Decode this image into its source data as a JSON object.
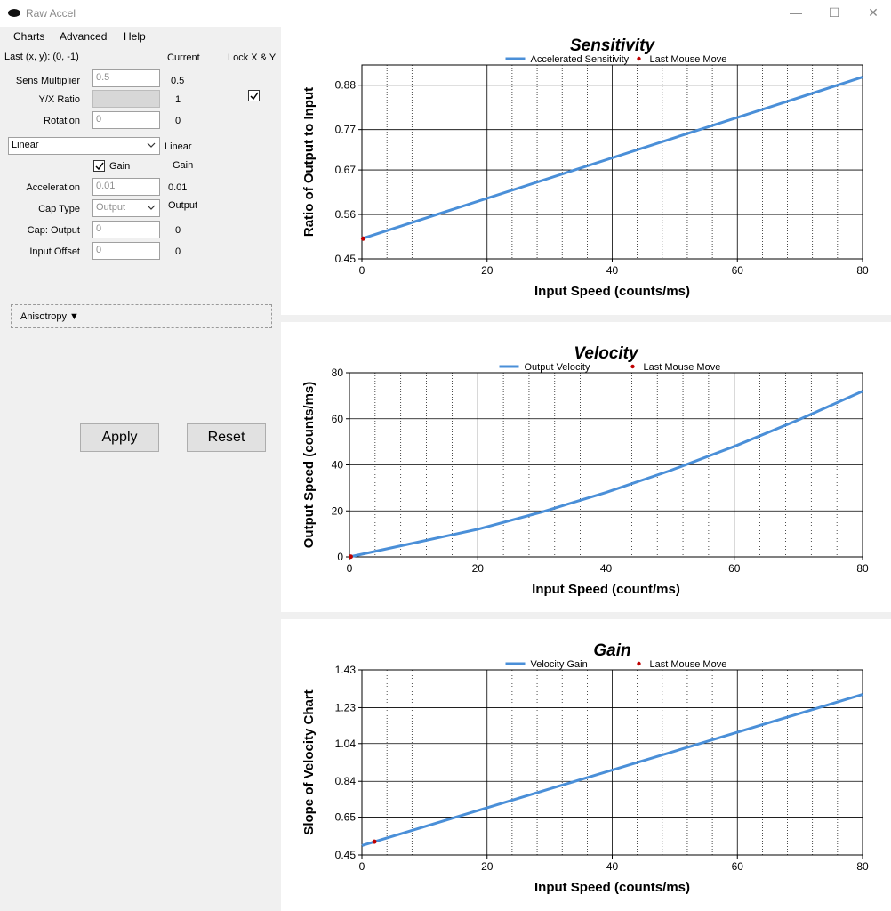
{
  "window": {
    "title": "Raw Accel",
    "minimize": "—",
    "maximize": "☐",
    "close": "✕"
  },
  "menu": {
    "items": [
      "Charts",
      "Advanced",
      "Help"
    ]
  },
  "panel": {
    "last_xy": "Last (x, y): (0, -1)",
    "current_header": "Current",
    "lock_header": "Lock X & Y",
    "sens_label": "Sens Multiplier",
    "sens_value": "0.5",
    "sens_current": "0.5",
    "yx_label": "Y/X Ratio",
    "yx_current": "1",
    "rotation_label": "Rotation",
    "rotation_value": "0",
    "rotation_current": "0",
    "accel_type": "Linear",
    "accel_type_current": "Linear",
    "gain_label": "Gain",
    "gain_current": "Gain",
    "acceleration_label": "Acceleration",
    "acceleration_value": "0.01",
    "acceleration_current": "0.01",
    "cap_type_label": "Cap Type",
    "cap_type_value": "Output",
    "cap_type_current": "Output",
    "cap_output_label": "Cap: Output",
    "cap_output_value": "0",
    "cap_output_current": "0",
    "input_offset_label": "Input Offset",
    "input_offset_value": "0",
    "input_offset_current": "0",
    "anisotropy_label": "Anisotropy ▼",
    "apply_label": "Apply",
    "reset_label": "Reset"
  },
  "colors": {
    "series": "#4a8fd8",
    "last_move": "#c00000",
    "panel_bg": "#f0f0f0"
  },
  "chart_data": [
    {
      "type": "line",
      "title": "Sensitivity",
      "xlabel": "Input Speed (counts/ms)",
      "ylabel": "Ratio of Output to Input",
      "xlim": [
        0,
        80
      ],
      "ylim": [
        0.45,
        0.93
      ],
      "xticks": [
        "0",
        "20",
        "40",
        "60",
        "80"
      ],
      "yticks": [
        "0.45",
        "0.56",
        "0.67",
        "0.77",
        "0.88"
      ],
      "legend": [
        "Accelerated Sensitivity",
        "Last Mouse Move"
      ],
      "series": [
        {
          "name": "Accelerated Sensitivity",
          "x": [
            0,
            80
          ],
          "y": [
            0.5,
            0.9
          ]
        }
      ],
      "last_move": {
        "x": 0.2,
        "y": 0.5
      }
    },
    {
      "type": "line",
      "title": "Velocity",
      "xlabel": "Input Speed (count/ms)",
      "ylabel": "Output Speed (counts/ms)",
      "xlim": [
        0,
        80
      ],
      "ylim": [
        0,
        80
      ],
      "xticks": [
        "0",
        "20",
        "40",
        "60",
        "80"
      ],
      "yticks": [
        "0",
        "20",
        "40",
        "60",
        "80"
      ],
      "legend": [
        "Output Velocity",
        "Last Mouse Move"
      ],
      "series": [
        {
          "name": "Output Velocity",
          "x": [
            0,
            10,
            20,
            30,
            40,
            50,
            60,
            70,
            80
          ],
          "y": [
            0,
            6,
            12,
            19.5,
            28,
            37.5,
            48,
            59.5,
            72
          ]
        }
      ],
      "last_move": {
        "x": 0.2,
        "y": 0.1
      }
    },
    {
      "type": "line",
      "title": "Gain",
      "xlabel": "Input Speed (counts/ms)",
      "ylabel": "Slope of Velocity Chart",
      "xlim": [
        0,
        80
      ],
      "ylim": [
        0.45,
        1.43
      ],
      "xticks": [
        "0",
        "20",
        "40",
        "60",
        "80"
      ],
      "yticks": [
        "0.45",
        "0.65",
        "0.84",
        "1.04",
        "1.23",
        "1.43"
      ],
      "legend": [
        "Velocity Gain",
        "Last Mouse Move"
      ],
      "series": [
        {
          "name": "Velocity Gain",
          "x": [
            0,
            80
          ],
          "y": [
            0.5,
            1.3
          ]
        }
      ],
      "last_move": {
        "x": 2,
        "y": 0.52
      }
    }
  ]
}
